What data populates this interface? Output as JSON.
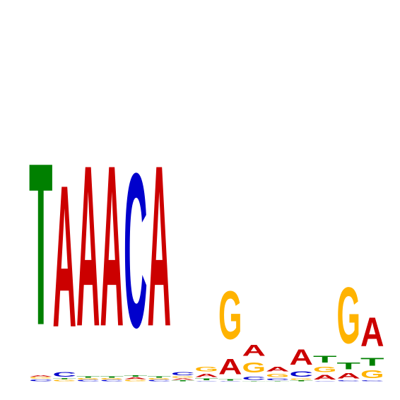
{
  "colors": {
    "A": "#cc0000",
    "C": "#0000cc",
    "G": "#ffb300",
    "T": "#008000"
  },
  "positions": [
    [
      {
        "base": "C",
        "bits": 0.015
      },
      {
        "base": "G",
        "bits": 0.01
      },
      {
        "base": "A",
        "bits": 0.012
      },
      {
        "base": "T",
        "bits": 1.45
      }
    ],
    [
      {
        "base": "G",
        "bits": 0.012
      },
      {
        "base": "T",
        "bits": 0.008
      },
      {
        "base": "C",
        "bits": 0.04
      },
      {
        "base": "A",
        "bits": 1.27
      }
    ],
    [
      {
        "base": "C",
        "bits": 0.01
      },
      {
        "base": "G",
        "bits": 0.01
      },
      {
        "base": "T",
        "bits": 0.012
      },
      {
        "base": "A",
        "bits": 1.44
      }
    ],
    [
      {
        "base": "C",
        "bits": 0.01
      },
      {
        "base": "G",
        "bits": 0.01
      },
      {
        "base": "T",
        "bits": 0.012
      },
      {
        "base": "A",
        "bits": 1.44
      }
    ],
    [
      {
        "base": "G",
        "bits": 0.01
      },
      {
        "base": "A",
        "bits": 0.015
      },
      {
        "base": "T",
        "bits": 0.012
      },
      {
        "base": "C",
        "bits": 1.38
      }
    ],
    [
      {
        "base": "C",
        "bits": 0.01
      },
      {
        "base": "G",
        "bits": 0.01
      },
      {
        "base": "T",
        "bits": 0.012
      },
      {
        "base": "A",
        "bits": 1.44
      }
    ],
    [
      {
        "base": "T",
        "bits": 0.008
      },
      {
        "base": "A",
        "bits": 0.012
      },
      {
        "base": "G",
        "bits": 0.01
      },
      {
        "base": "C",
        "bits": 0.03
      }
    ],
    [
      {
        "base": "C",
        "bits": 0.004
      },
      {
        "base": "T",
        "bits": 0.015
      },
      {
        "base": "A",
        "bits": 0.03
      },
      {
        "base": "G",
        "bits": 0.04
      }
    ],
    [
      {
        "base": "C",
        "bits": 0.004
      },
      {
        "base": "T",
        "bits": 0.01
      },
      {
        "base": "A",
        "bits": 0.14
      },
      {
        "base": "G",
        "bits": 0.43
      }
    ],
    [
      {
        "base": "T",
        "bits": 0.004
      },
      {
        "base": "C",
        "bits": 0.03
      },
      {
        "base": "G",
        "bits": 0.09
      },
      {
        "base": "A",
        "bits": 0.1
      }
    ],
    [
      {
        "base": "T",
        "bits": 0.004
      },
      {
        "base": "C",
        "bits": 0.015
      },
      {
        "base": "G",
        "bits": 0.03
      },
      {
        "base": "A",
        "bits": 0.04
      }
    ],
    [
      {
        "base": "T",
        "bits": 0.008
      },
      {
        "base": "G",
        "bits": 0.01
      },
      {
        "base": "C",
        "bits": 0.05
      },
      {
        "base": "A",
        "bits": 0.14
      }
    ],
    [
      {
        "base": "C",
        "bits": 0.004
      },
      {
        "base": "A",
        "bits": 0.04
      },
      {
        "base": "G",
        "bits": 0.05
      },
      {
        "base": "T",
        "bits": 0.06
      }
    ],
    [
      {
        "base": "C",
        "bits": 0.008
      },
      {
        "base": "A",
        "bits": 0.05
      },
      {
        "base": "T",
        "bits": 0.06
      },
      {
        "base": "G",
        "bits": 0.5
      }
    ],
    [
      {
        "base": "C",
        "bits": 0.006
      },
      {
        "base": "G",
        "bits": 0.07
      },
      {
        "base": "T",
        "bits": 0.07
      },
      {
        "base": "A",
        "bits": 0.26
      }
    ]
  ]
}
